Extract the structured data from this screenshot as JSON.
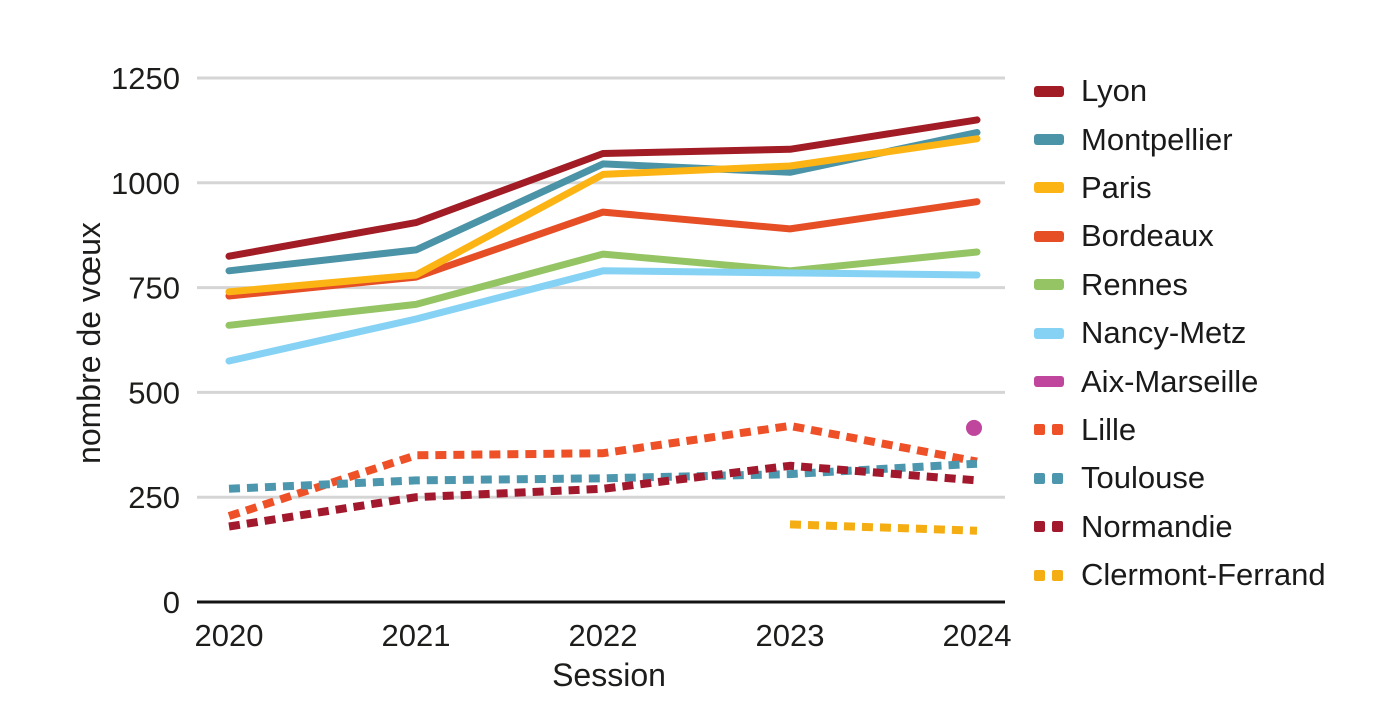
{
  "chart_data": {
    "type": "line",
    "title": "",
    "xlabel": "Session",
    "ylabel": "nombre de vœux",
    "x": [
      2020,
      2021,
      2022,
      2023,
      2024
    ],
    "x_tick_labels": [
      "2020",
      "2021",
      "2022",
      "2023",
      "2024"
    ],
    "yticks": [
      0,
      250,
      500,
      750,
      1000,
      1250
    ],
    "ylim": [
      0,
      1250
    ],
    "grid": true,
    "legend_position": "right",
    "axis_text_color": "#1d1d1b",
    "gridline_color": "#d5d5d5",
    "axis_line_color": "#141414",
    "series": [
      {
        "name": "Lyon",
        "color": "#a11c25",
        "style": "solid",
        "values": [
          825,
          905,
          1070,
          1080,
          1150
        ]
      },
      {
        "name": "Montpellier",
        "color": "#4b93a6",
        "style": "solid",
        "values": [
          790,
          840,
          1045,
          1025,
          1120
        ]
      },
      {
        "name": "Paris",
        "color": "#fbb414",
        "style": "solid",
        "values": [
          740,
          780,
          1020,
          1040,
          1105
        ]
      },
      {
        "name": "Bordeaux",
        "color": "#e64e26",
        "style": "solid",
        "values": [
          730,
          775,
          930,
          890,
          955
        ]
      },
      {
        "name": "Rennes",
        "color": "#94c464",
        "style": "solid",
        "values": [
          660,
          710,
          830,
          790,
          835
        ]
      },
      {
        "name": "Nancy-Metz",
        "color": "#85d2f4",
        "style": "solid",
        "values": [
          575,
          675,
          790,
          785,
          780
        ]
      },
      {
        "name": "Aix-Marseille",
        "color": "#c0459c",
        "style": "point",
        "values": [
          null,
          null,
          null,
          null,
          420
        ]
      },
      {
        "name": "Lille",
        "color": "#ee5127",
        "style": "dashed",
        "values": [
          205,
          350,
          355,
          420,
          335
        ]
      },
      {
        "name": "Toulouse",
        "color": "#4c97ad",
        "style": "dashed",
        "values": [
          270,
          290,
          295,
          305,
          330
        ]
      },
      {
        "name": "Normandie",
        "color": "#a2192d",
        "style": "dashed",
        "values": [
          180,
          250,
          270,
          325,
          290
        ]
      },
      {
        "name": "Clermont-Ferrand",
        "color": "#f4ae14",
        "style": "dashed",
        "values": [
          null,
          null,
          null,
          185,
          170
        ]
      }
    ]
  }
}
